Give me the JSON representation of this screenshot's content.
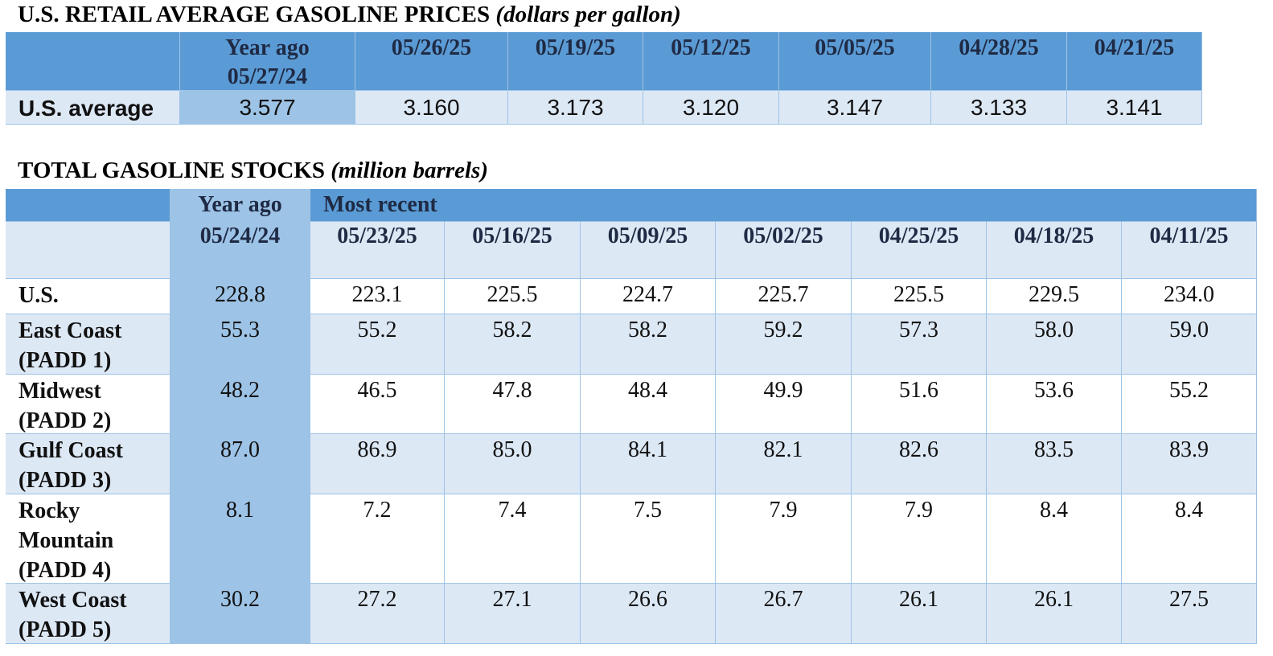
{
  "prices": {
    "title": "U.S. RETAIL AVERAGE GASOLINE PRICES",
    "subtitle": "(dollars per gallon)",
    "year_ago_label": "Year ago",
    "columns": [
      "05/27/24",
      "05/26/25",
      "05/19/25",
      "05/12/25",
      "05/05/25",
      "04/28/25",
      "04/21/25"
    ],
    "rows": [
      {
        "label": "U.S. average",
        "values": [
          "3.577",
          "3.160",
          "3.173",
          "3.120",
          "3.147",
          "3.133",
          "3.141"
        ]
      }
    ]
  },
  "stocks": {
    "title": "TOTAL GASOLINE STOCKS",
    "subtitle": "(million barrels)",
    "year_ago_label": "Year ago",
    "recent_label": "Most recent",
    "columns": [
      "05/24/24",
      "05/23/25",
      "05/16/25",
      "05/09/25",
      "05/02/25",
      "04/25/25",
      "04/18/25",
      "04/11/25"
    ],
    "rows": [
      {
        "label": "U.S.",
        "values": [
          "228.8",
          "223.1",
          "225.5",
          "224.7",
          "225.7",
          "225.5",
          "229.5",
          "234.0"
        ]
      },
      {
        "label": "East Coast (PADD 1)",
        "values": [
          "55.3",
          "55.2",
          "58.2",
          "58.2",
          "59.2",
          "57.3",
          "58.0",
          "59.0"
        ]
      },
      {
        "label": "Midwest (PADD 2)",
        "values": [
          "48.2",
          "46.5",
          "47.8",
          "48.4",
          "49.9",
          "51.6",
          "53.6",
          "55.2"
        ]
      },
      {
        "label": "Gulf Coast (PADD 3)",
        "values": [
          "87.0",
          "86.9",
          "85.0",
          "84.1",
          "82.1",
          "82.6",
          "83.5",
          "83.9"
        ]
      },
      {
        "label": "Rocky Mountain (PADD 4)",
        "values": [
          "8.1",
          "7.2",
          "7.4",
          "7.5",
          "7.9",
          "7.9",
          "8.4",
          "8.4"
        ]
      },
      {
        "label": "West Coast (PADD 5)",
        "values": [
          "30.2",
          "27.2",
          "27.1",
          "26.6",
          "26.7",
          "26.1",
          "26.1",
          "27.5"
        ]
      }
    ]
  }
}
